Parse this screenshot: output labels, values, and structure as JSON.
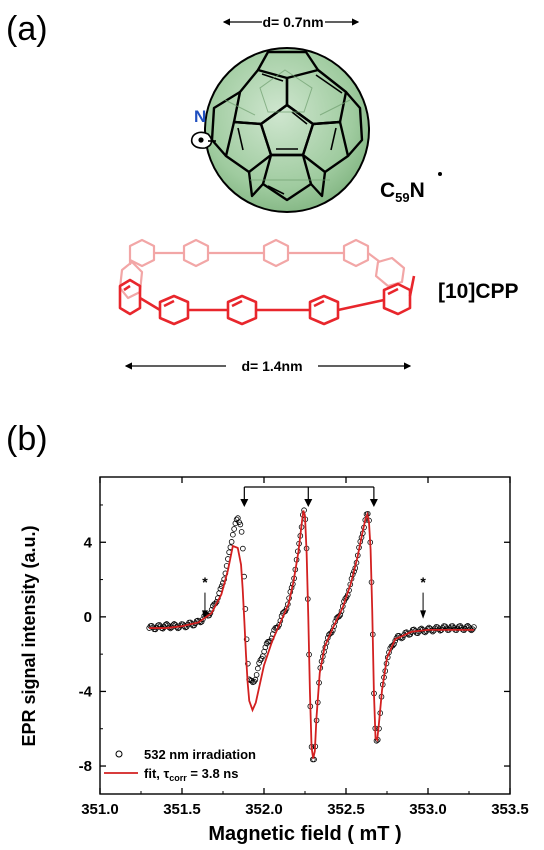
{
  "panel_a": {
    "label": "(a)",
    "fullerene_diameter": "d= 0.7nm",
    "fullerene_name_main": "C",
    "fullerene_name_sub": "59",
    "fullerene_name_tail": "N",
    "nitrogen_label": "N",
    "cpp_diameter": "d= 1.4nm",
    "cpp_name": "[10]CPP",
    "fullerene_color": "#a9d2a9",
    "cpp_color": "#e8262c",
    "cpp_back_color": "#f2a6a6",
    "nitrogen_color": "#1f4fbf"
  },
  "panel_b": {
    "label": "(b)"
  },
  "chart_data": {
    "type": "scatter",
    "xlabel": "Magnetic field ( mT )",
    "ylabel": "EPR signal intensity (a.u.)",
    "xlim": [
      351.0,
      353.5
    ],
    "ylim": [
      -9.5,
      7.5
    ],
    "xticks": [
      351.0,
      351.5,
      352.0,
      352.5,
      353.0,
      353.5
    ],
    "xtick_labels": [
      "351.0",
      "351.5",
      "352.0",
      "352.5",
      "353.0",
      "353.5"
    ],
    "yticks": [
      -8,
      -4,
      0,
      4
    ],
    "ytick_labels": [
      "-8",
      "-4",
      "0",
      "4"
    ],
    "legend": {
      "position": "bottom-left",
      "entries": [
        {
          "marker": "open-circle",
          "text": "532 nm irradiation"
        },
        {
          "marker": "red-line",
          "text_prefix": "fit, τ",
          "text_sub": "corr",
          "text_suffix": " = 3.8 ns"
        }
      ]
    },
    "annotations": {
      "asterisk": "*",
      "asterisk_positions_x": [
        351.64,
        352.97
      ],
      "bracket_line_positions_x": [
        351.88,
        352.27,
        352.67
      ]
    },
    "series": [
      {
        "name": "532 nm irradiation",
        "style": "open-circle",
        "x": [
          351.3,
          351.4,
          351.5,
          351.6,
          351.68,
          351.74,
          351.78,
          351.81,
          351.84,
          351.86,
          351.87,
          351.88,
          351.89,
          351.9,
          351.91,
          351.93,
          351.95,
          351.97,
          352.0,
          352.05,
          352.1,
          352.15,
          352.18,
          352.21,
          352.23,
          352.24,
          352.25,
          352.26,
          352.27,
          352.28,
          352.29,
          352.3,
          352.31,
          352.32,
          352.34,
          352.37,
          352.42,
          352.48,
          352.53,
          352.57,
          352.6,
          352.62,
          352.63,
          352.64,
          352.65,
          352.66,
          352.67,
          352.68,
          352.69,
          352.7,
          352.72,
          352.75,
          352.8,
          352.9,
          353.0,
          353.1,
          353.2,
          353.28
        ],
        "y": [
          -0.6,
          -0.5,
          -0.5,
          -0.3,
          0.3,
          1.5,
          3.0,
          4.5,
          5.3,
          5.0,
          3.8,
          1.8,
          -0.4,
          -2.2,
          -3.4,
          -3.6,
          -3.2,
          -2.6,
          -1.8,
          -1.0,
          -0.2,
          0.8,
          2.0,
          3.6,
          5.0,
          5.8,
          5.5,
          3.5,
          0.0,
          -4.0,
          -7.0,
          -8.0,
          -7.5,
          -5.5,
          -3.0,
          -1.6,
          -0.6,
          0.5,
          1.8,
          3.2,
          4.5,
          5.3,
          5.5,
          5.2,
          3.8,
          0.5,
          -4.0,
          -6.5,
          -6.8,
          -6.0,
          -4.0,
          -2.2,
          -1.2,
          -0.8,
          -0.7,
          -0.6,
          -0.6,
          -0.6
        ]
      },
      {
        "name": "fit, τcorr = 3.8 ns",
        "style": "red-line",
        "color": "#d32020",
        "x": [
          351.3,
          351.4,
          351.5,
          351.6,
          351.68,
          351.74,
          351.78,
          351.81,
          351.84,
          351.86,
          351.87,
          351.88,
          351.89,
          351.9,
          351.91,
          351.93,
          351.95,
          351.97,
          352.0,
          352.05,
          352.1,
          352.15,
          352.18,
          352.21,
          352.23,
          352.24,
          352.25,
          352.26,
          352.27,
          352.28,
          352.29,
          352.3,
          352.31,
          352.32,
          352.34,
          352.37,
          352.42,
          352.48,
          352.53,
          352.57,
          352.6,
          352.62,
          352.63,
          352.64,
          352.65,
          352.66,
          352.67,
          352.68,
          352.69,
          352.7,
          352.72,
          352.75,
          352.8,
          352.9,
          353.0,
          353.1,
          353.2,
          353.28
        ],
        "y": [
          -0.6,
          -0.6,
          -0.5,
          -0.3,
          0.2,
          1.2,
          2.5,
          3.8,
          3.7,
          2.8,
          1.5,
          -0.2,
          -2.0,
          -3.5,
          -4.5,
          -5.0,
          -4.6,
          -3.8,
          -2.6,
          -1.3,
          -0.3,
          0.7,
          1.9,
          3.5,
          5.0,
          5.7,
          5.4,
          3.4,
          0.0,
          -4.0,
          -7.0,
          -7.6,
          -7.2,
          -5.4,
          -3.0,
          -1.6,
          -0.6,
          0.5,
          1.8,
          3.2,
          4.5,
          5.3,
          5.5,
          5.1,
          3.6,
          0.3,
          -4.0,
          -6.5,
          -6.6,
          -5.8,
          -3.9,
          -2.2,
          -1.2,
          -0.8,
          -0.7,
          -0.7,
          -0.7,
          -0.7
        ]
      }
    ]
  }
}
